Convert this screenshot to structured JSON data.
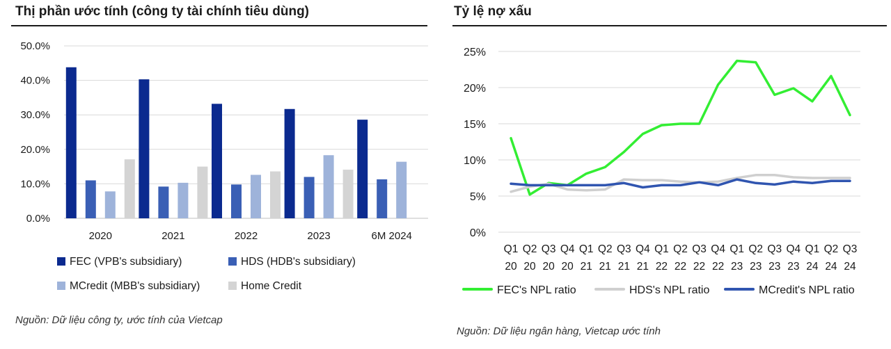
{
  "chart_data": [
    {
      "type": "bar",
      "title": "Thị phần ước tính (công ty tài chính tiêu dùng)",
      "categories": [
        "2020",
        "2021",
        "2022",
        "2023",
        "6M 2024"
      ],
      "ylim": [
        0,
        50
      ],
      "yticks": [
        "0.0%",
        "10.0%",
        "20.0%",
        "30.0%",
        "40.0%",
        "50.0%"
      ],
      "grid": true,
      "legend_position": "bottom",
      "series": [
        {
          "name": "FEC (VPB's subsidiary)",
          "color": "#0b2a8f",
          "values": [
            43.8,
            40.3,
            33.2,
            31.7,
            28.6
          ]
        },
        {
          "name": "HDS (HDB's subsidiary)",
          "color": "#3a5fb5",
          "values": [
            11.0,
            9.2,
            9.8,
            12.0,
            11.3
          ]
        },
        {
          "name": "MCredit (MBB's subsidiary)",
          "color": "#9eb3da",
          "values": [
            7.8,
            10.3,
            12.6,
            18.3,
            16.4
          ]
        },
        {
          "name": "Home Credit",
          "color": "#d4d4d4",
          "values": [
            17.1,
            15.0,
            13.6,
            14.1,
            null
          ]
        }
      ],
      "source": "Nguồn: Dữ liệu công ty, ước tính của Vietcap"
    },
    {
      "type": "line",
      "title": "Tỷ lệ nợ xấu",
      "categories": [
        [
          "Q1",
          "20"
        ],
        [
          "Q2",
          "20"
        ],
        [
          "Q3",
          "20"
        ],
        [
          "Q4",
          "20"
        ],
        [
          "Q1",
          "21"
        ],
        [
          "Q2",
          "21"
        ],
        [
          "Q3",
          "21"
        ],
        [
          "Q4",
          "21"
        ],
        [
          "Q1",
          "22"
        ],
        [
          "Q2",
          "22"
        ],
        [
          "Q3",
          "22"
        ],
        [
          "Q4",
          "22"
        ],
        [
          "Q1",
          "23"
        ],
        [
          "Q2",
          "23"
        ],
        [
          "Q3",
          "23"
        ],
        [
          "Q4",
          "23"
        ],
        [
          "Q1",
          "24"
        ],
        [
          "Q2",
          "24"
        ],
        [
          "Q3",
          "24"
        ]
      ],
      "ylim": [
        0,
        25
      ],
      "yticks": [
        "0%",
        "5%",
        "10%",
        "15%",
        "20%",
        "25%"
      ],
      "grid": true,
      "legend_position": "bottom",
      "series": [
        {
          "name": "FEC's NPL ratio",
          "color": "#33ee33",
          "values": [
            13.0,
            5.2,
            6.8,
            6.5,
            8.1,
            9.0,
            11.1,
            13.6,
            14.8,
            15.0,
            15.0,
            20.4,
            23.7,
            23.5,
            19.0,
            19.9,
            18.1,
            21.6,
            16.2
          ]
        },
        {
          "name": "HDS's NPL ratio",
          "color": "#cfcfcf",
          "values": [
            5.6,
            6.3,
            6.7,
            5.9,
            5.8,
            5.9,
            7.3,
            7.2,
            7.2,
            7.0,
            6.9,
            7.0,
            7.5,
            7.9,
            7.9,
            7.6,
            7.5,
            7.5,
            7.5
          ]
        },
        {
          "name": "MCredit's NPL ratio",
          "color": "#3055b0",
          "values": [
            6.7,
            6.5,
            6.5,
            6.5,
            6.5,
            6.5,
            6.8,
            6.2,
            6.5,
            6.5,
            6.9,
            6.5,
            7.3,
            6.8,
            6.6,
            7.0,
            6.8,
            7.1,
            7.1
          ]
        }
      ],
      "source": "Nguồn: Dữ liệu ngân hàng, Vietcap ước tính"
    }
  ]
}
